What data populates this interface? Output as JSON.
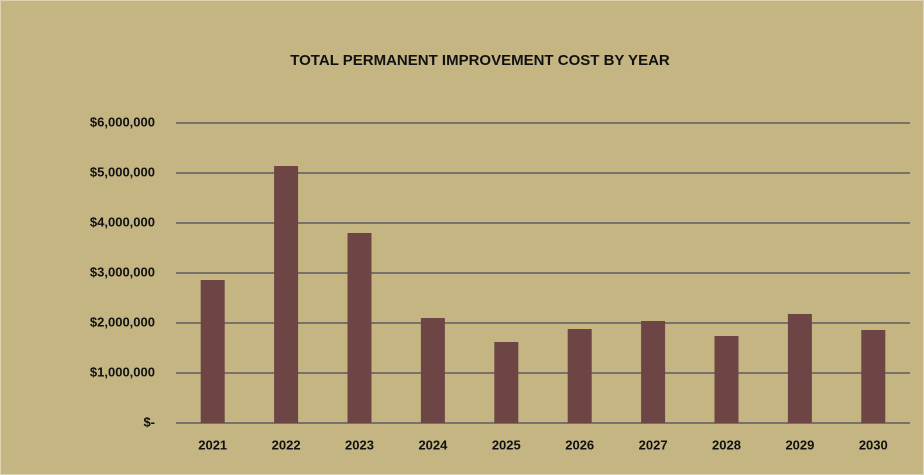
{
  "chart_data": {
    "type": "bar",
    "title": "TOTAL PERMANENT IMPROVEMENT COST BY YEAR",
    "categories": [
      "2021",
      "2022",
      "2023",
      "2024",
      "2025",
      "2026",
      "2027",
      "2028",
      "2029",
      "2030"
    ],
    "values": [
      2860000,
      5140000,
      3800000,
      2100000,
      1620000,
      1880000,
      2040000,
      1740000,
      2180000,
      1860000
    ],
    "color": "#6e4545",
    "ylim": [
      0,
      6000000
    ],
    "yticks": [
      {
        "value": 0,
        "label": "$-"
      },
      {
        "value": 1000000,
        "label": "$1,000,000"
      },
      {
        "value": 2000000,
        "label": "$2,000,000"
      },
      {
        "value": 3000000,
        "label": "$3,000,000"
      },
      {
        "value": 4000000,
        "label": "$4,000,000"
      },
      {
        "value": 5000000,
        "label": "$5,000,000"
      },
      {
        "value": 6000000,
        "label": "$6,000,000"
      }
    ],
    "grid": true
  }
}
